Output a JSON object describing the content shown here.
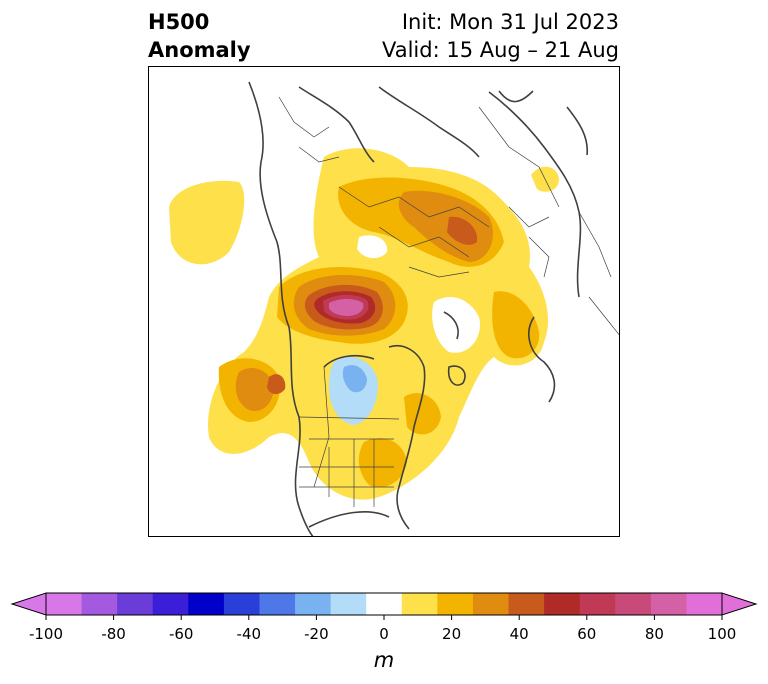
{
  "header": {
    "title_line1": "H500",
    "title_line2": "Anomaly",
    "init_text": "Init: Mon 31 Jul 2023",
    "valid_text": "Valid: 15 Aug – 21 Aug"
  },
  "colorbar": {
    "unit": "m",
    "ticks": [
      "-100",
      "-80",
      "-60",
      "-40",
      "-20",
      "0",
      "20",
      "40",
      "60",
      "80",
      "100"
    ],
    "levels": [
      -100,
      -90,
      -80,
      -70,
      -60,
      -50,
      -40,
      -30,
      -20,
      -10,
      10,
      20,
      30,
      40,
      50,
      60,
      70,
      80,
      90,
      100
    ],
    "colors": [
      "#d878e8",
      "#a45ae0",
      "#6a3cd8",
      "#3a1ed8",
      "#0000c8",
      "#2a3ed8",
      "#4e78e8",
      "#78b2f0",
      "#b2dcf8",
      "#ffffff",
      "#fde04a",
      "#f2b400",
      "#e08c10",
      "#c85a1c",
      "#b02a28",
      "#c03a56",
      "#c84a78",
      "#d460a6",
      "#e070d8"
    ],
    "under_color": "#d878e8",
    "over_color": "#e070d8"
  },
  "map": {
    "projection": "north-polar-stereographic",
    "features": [
      "coastlines",
      "country-borders",
      "state-borders"
    ],
    "field": "500 hPa geopotential height anomaly"
  }
}
